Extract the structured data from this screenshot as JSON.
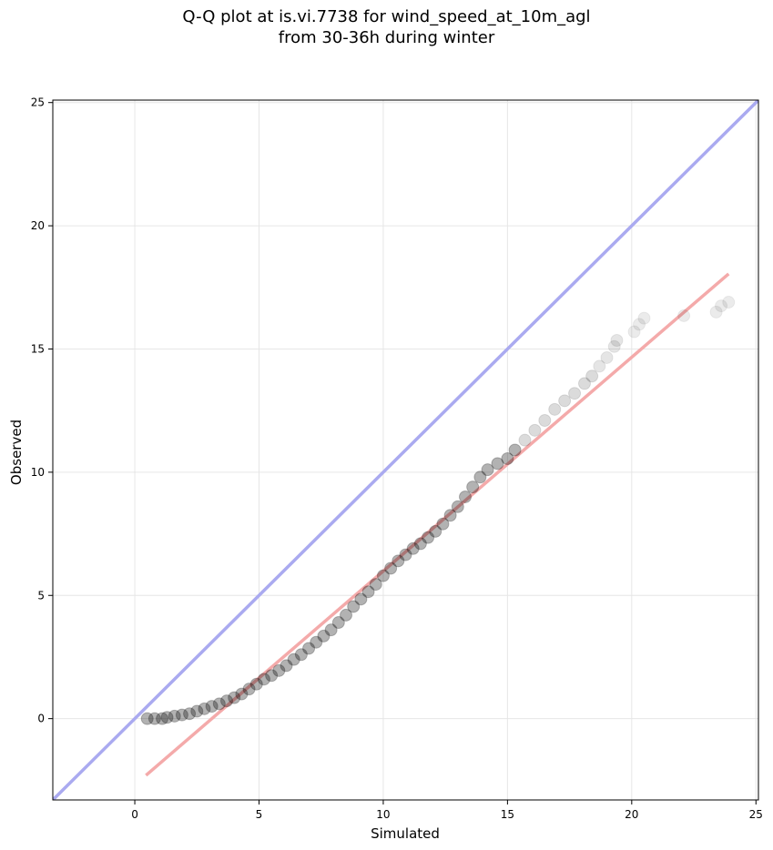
{
  "chart_data": {
    "type": "scatter",
    "title": [
      "Q-Q plot at is.vi.7738 for wind_speed_at_10m_agl",
      "from 30-36h during winter"
    ],
    "xlabel": "Simulated",
    "ylabel": "Observed",
    "xlim": [
      -3.3,
      25.1
    ],
    "ylim": [
      -3.3,
      25.1
    ],
    "xticks": [
      0,
      5,
      10,
      15,
      20,
      25
    ],
    "yticks": [
      0,
      5,
      10,
      15,
      20,
      25
    ],
    "grid": true,
    "reference_line": {
      "color": "#aaaaf0",
      "from": [
        -3.3,
        -3.3
      ],
      "to": [
        25.1,
        25.1
      ]
    },
    "fit_line": {
      "color": "#f4aaaa",
      "from": [
        0.45,
        -2.3
      ],
      "to": [
        23.9,
        18.05
      ]
    },
    "point_color": "#000000",
    "quantiles": [
      [
        0.5,
        0.0
      ],
      [
        0.8,
        0.0
      ],
      [
        1.1,
        0.0
      ],
      [
        1.3,
        0.05
      ],
      [
        1.6,
        0.1
      ],
      [
        1.9,
        0.15
      ],
      [
        2.2,
        0.2
      ],
      [
        2.5,
        0.3
      ],
      [
        2.8,
        0.4
      ],
      [
        3.1,
        0.5
      ],
      [
        3.4,
        0.6
      ],
      [
        3.7,
        0.72
      ],
      [
        4.0,
        0.85
      ],
      [
        4.3,
        1.0
      ],
      [
        4.6,
        1.2
      ],
      [
        4.9,
        1.4
      ],
      [
        5.2,
        1.6
      ],
      [
        5.5,
        1.75
      ],
      [
        5.8,
        1.95
      ],
      [
        6.1,
        2.15
      ],
      [
        6.4,
        2.4
      ],
      [
        6.7,
        2.6
      ],
      [
        7.0,
        2.85
      ],
      [
        7.3,
        3.1
      ],
      [
        7.6,
        3.35
      ],
      [
        7.9,
        3.6
      ],
      [
        8.2,
        3.9
      ],
      [
        8.5,
        4.2
      ],
      [
        8.8,
        4.55
      ],
      [
        9.1,
        4.85
      ],
      [
        9.4,
        5.15
      ],
      [
        9.7,
        5.45
      ],
      [
        10.0,
        5.8
      ],
      [
        10.3,
        6.1
      ],
      [
        10.6,
        6.4
      ],
      [
        10.9,
        6.65
      ],
      [
        11.2,
        6.9
      ],
      [
        11.5,
        7.1
      ],
      [
        11.8,
        7.35
      ],
      [
        12.1,
        7.6
      ],
      [
        12.4,
        7.9
      ],
      [
        12.7,
        8.25
      ],
      [
        13.0,
        8.6
      ],
      [
        13.3,
        9.0
      ],
      [
        13.6,
        9.4
      ],
      [
        13.9,
        9.8
      ],
      [
        14.2,
        10.1
      ],
      [
        14.6,
        10.35
      ],
      [
        15.0,
        10.55
      ],
      [
        15.3,
        10.9
      ],
      [
        15.7,
        11.3
      ],
      [
        16.1,
        11.7
      ],
      [
        16.5,
        12.1
      ],
      [
        16.9,
        12.55
      ],
      [
        17.3,
        12.9
      ],
      [
        17.7,
        13.2
      ],
      [
        18.1,
        13.6
      ],
      [
        18.4,
        13.9
      ],
      [
        18.7,
        14.3
      ],
      [
        19.0,
        14.65
      ],
      [
        19.3,
        15.1
      ],
      [
        19.4,
        15.35
      ],
      [
        20.1,
        15.7
      ],
      [
        20.3,
        16.0
      ],
      [
        20.5,
        16.25
      ],
      [
        22.1,
        16.35
      ],
      [
        23.4,
        16.5
      ],
      [
        23.6,
        16.75
      ],
      [
        23.9,
        16.9
      ]
    ]
  }
}
